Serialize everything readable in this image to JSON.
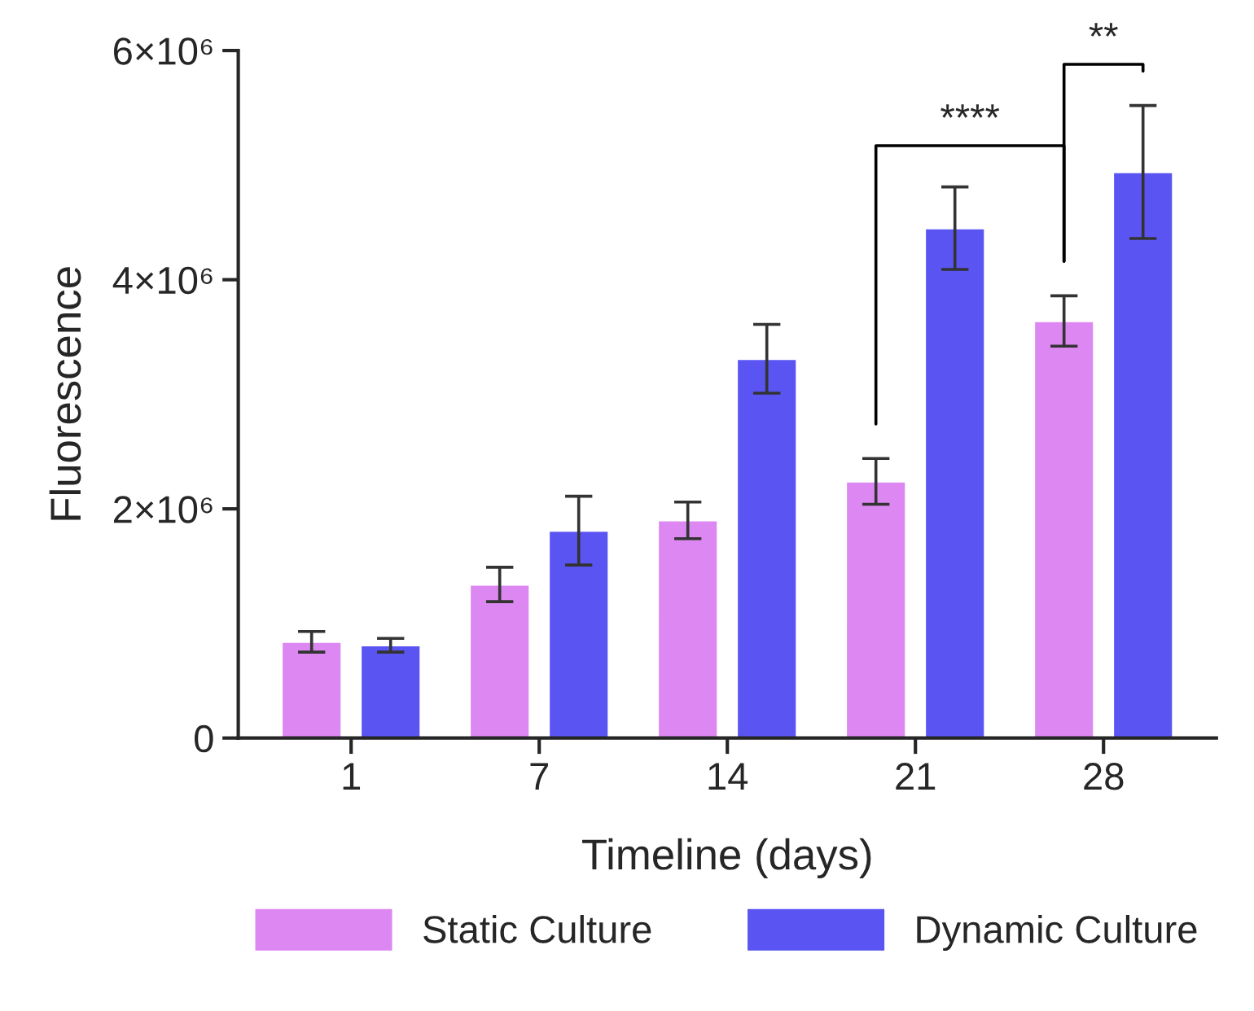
{
  "chart_data": {
    "type": "bar",
    "xlabel": "Timeline (days)",
    "ylabel": "Fluorescence",
    "categories": [
      "1",
      "7",
      "14",
      "21",
      "28"
    ],
    "series": [
      {
        "name": "Static Culture",
        "color": "#dd88f2",
        "values": [
          840000,
          1340000,
          1900000,
          2240000,
          3640000
        ],
        "errors": [
          90000,
          150000,
          160000,
          200000,
          220000
        ]
      },
      {
        "name": "Dynamic Culture",
        "color": "#5a55f2",
        "values": [
          810000,
          1810000,
          3310000,
          4450000,
          4940000
        ],
        "errors": [
          60000,
          300000,
          300000,
          360000,
          580000
        ]
      }
    ],
    "ylim": [
      0,
      6000000
    ],
    "yticks": [
      0,
      {
        "value": 2000000,
        "label": "2×10⁶"
      },
      {
        "value": 4000000,
        "label": "4×10⁶"
      },
      {
        "value": 6000000,
        "label": "6×10⁶"
      }
    ],
    "annotations": [
      "****",
      "**"
    ],
    "grid": false,
    "legend": "bottom"
  }
}
